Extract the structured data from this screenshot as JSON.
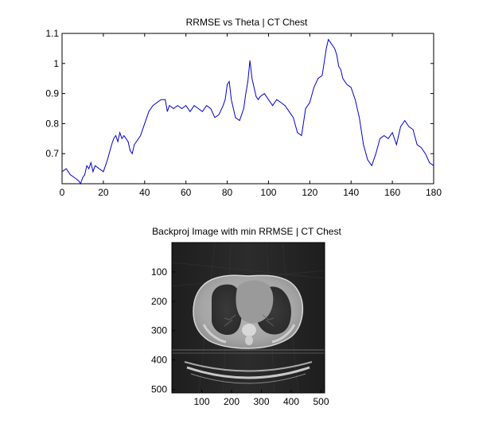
{
  "chart_data": [
    {
      "type": "line",
      "title": "RRMSE vs Theta | CT Chest",
      "xlabel": "",
      "ylabel": "",
      "xlim": [
        0,
        180
      ],
      "ylim": [
        0.6,
        1.1
      ],
      "xticks": [
        0,
        20,
        40,
        60,
        80,
        100,
        120,
        140,
        160,
        180
      ],
      "xtick_labels": [
        "0",
        "20",
        "40",
        "60",
        "80",
        "100",
        "120",
        "140",
        "160",
        "180"
      ],
      "yticks": [
        0.7,
        0.8,
        0.9,
        1.0,
        1.1
      ],
      "ytick_labels": [
        "0.7",
        "0.8",
        "0.9",
        "1",
        "1.1"
      ],
      "grid": false,
      "series": [
        {
          "color": "#0000cc",
          "x": [
            0,
            2,
            4,
            6,
            8,
            9,
            10,
            11,
            12,
            13,
            14,
            15,
            16,
            18,
            20,
            22,
            24,
            25,
            26,
            27,
            28,
            29,
            30,
            31,
            32,
            33,
            34,
            35,
            36,
            38,
            40,
            42,
            44,
            46,
            48,
            50,
            51,
            52,
            54,
            56,
            58,
            60,
            62,
            64,
            66,
            68,
            70,
            72,
            74,
            76,
            78,
            79,
            80,
            81,
            82,
            84,
            86,
            88,
            89,
            90,
            91,
            92,
            93,
            94,
            95,
            96,
            98,
            100,
            102,
            104,
            106,
            108,
            110,
            112,
            114,
            116,
            118,
            120,
            122,
            124,
            126,
            128,
            129,
            130,
            131,
            132,
            133,
            134,
            135,
            136,
            138,
            140,
            142,
            144,
            146,
            148,
            150,
            152,
            154,
            156,
            158,
            160,
            162,
            164,
            166,
            168,
            170,
            172,
            174,
            176,
            178,
            180
          ],
          "y": [
            0.64,
            0.65,
            0.63,
            0.62,
            0.61,
            0.6,
            0.62,
            0.63,
            0.66,
            0.65,
            0.67,
            0.64,
            0.66,
            0.65,
            0.64,
            0.68,
            0.73,
            0.75,
            0.76,
            0.74,
            0.77,
            0.75,
            0.76,
            0.75,
            0.74,
            0.71,
            0.7,
            0.73,
            0.74,
            0.76,
            0.8,
            0.84,
            0.86,
            0.87,
            0.88,
            0.88,
            0.84,
            0.86,
            0.85,
            0.86,
            0.85,
            0.86,
            0.84,
            0.86,
            0.85,
            0.84,
            0.86,
            0.85,
            0.82,
            0.83,
            0.86,
            0.88,
            0.93,
            0.94,
            0.88,
            0.82,
            0.81,
            0.85,
            0.9,
            0.94,
            1.01,
            0.95,
            0.92,
            0.89,
            0.88,
            0.89,
            0.9,
            0.88,
            0.86,
            0.88,
            0.87,
            0.86,
            0.84,
            0.82,
            0.77,
            0.76,
            0.85,
            0.87,
            0.92,
            0.95,
            0.96,
            1.05,
            1.08,
            1.07,
            1.06,
            1.05,
            1.03,
            0.99,
            0.98,
            0.95,
            0.93,
            0.92,
            0.88,
            0.82,
            0.73,
            0.68,
            0.66,
            0.7,
            0.75,
            0.76,
            0.75,
            0.77,
            0.73,
            0.79,
            0.81,
            0.79,
            0.78,
            0.73,
            0.72,
            0.7,
            0.67,
            0.66
          ]
        }
      ]
    },
    {
      "type": "image",
      "title": "Backproj Image with min RRMSE | CT Chest",
      "xlim": [
        0,
        512
      ],
      "ylim": [
        0,
        512
      ],
      "xticks": [
        100,
        200,
        300,
        400,
        500
      ],
      "xtick_labels": [
        "100",
        "200",
        "300",
        "400",
        "500"
      ],
      "yticks": [
        100,
        200,
        300,
        400,
        500
      ],
      "ytick_labels": [
        "100",
        "200",
        "300",
        "400",
        "500"
      ]
    }
  ]
}
